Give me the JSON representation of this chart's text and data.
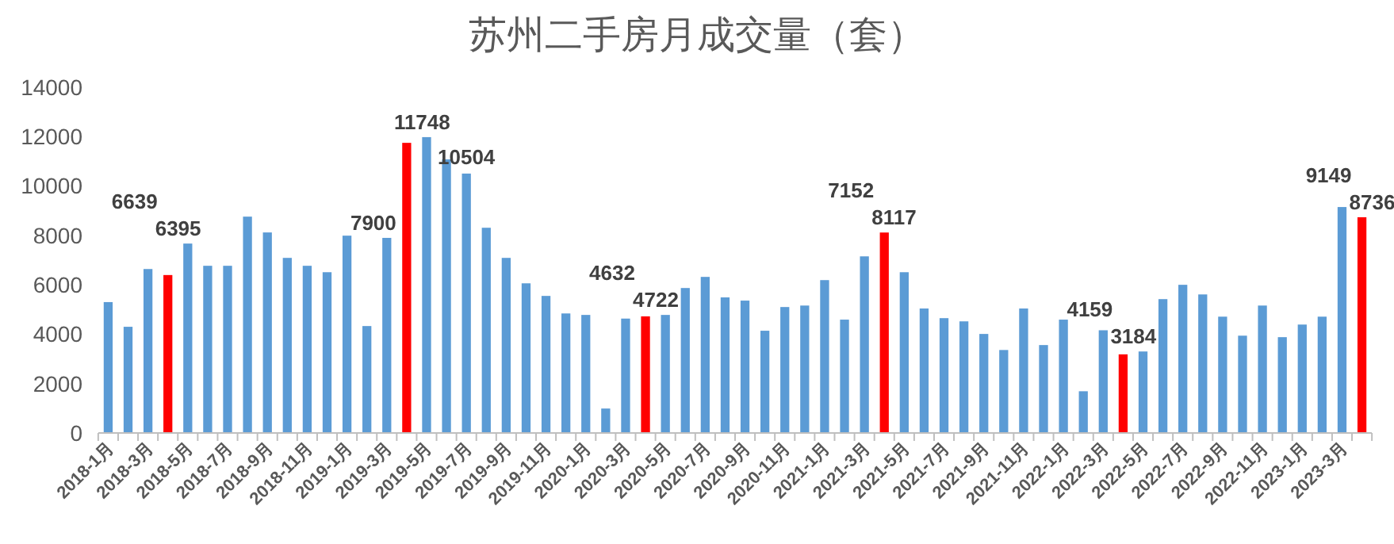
{
  "chart_data": {
    "type": "bar",
    "title": "苏州二手房月成交量（套）",
    "categories": [
      "2018-1月",
      null,
      "2018-3月",
      null,
      "2018-5月",
      null,
      "2018-7月",
      null,
      "2018-9月",
      null,
      "2018-11月",
      null,
      "2019-1月",
      null,
      "2019-3月",
      null,
      "2019-5月",
      null,
      "2019-7月",
      null,
      "2019-9月",
      null,
      "2019-11月",
      null,
      "2020-1月",
      null,
      "2020-3月",
      null,
      "2020-5月",
      null,
      "2020-7月",
      null,
      "2020-9月",
      null,
      "2020-11月",
      null,
      "2021-1月",
      null,
      "2021-3月",
      null,
      "2021-5月",
      null,
      "2021-7月",
      null,
      "2021-9月",
      null,
      "2021-11月",
      null,
      "2022-1月",
      null,
      "2022-3月",
      null,
      "2022-5月",
      null,
      "2022-7月",
      null,
      "2022-9月",
      null,
      "2022-11月",
      null,
      "2023-1月",
      null,
      "2023-3月",
      null
    ],
    "values": [
      5300,
      4300,
      6639,
      6395,
      7670,
      6770,
      6770,
      8760,
      8120,
      7090,
      6770,
      6510,
      7990,
      4330,
      7900,
      11748,
      11980,
      11080,
      10504,
      8310,
      7090,
      6060,
      5550,
      4840,
      4780,
      990,
      4632,
      4722,
      4780,
      5870,
      6320,
      5490,
      5360,
      4140,
      5100,
      5160,
      6190,
      4590,
      7152,
      8117,
      6510,
      5040,
      4650,
      4520,
      4010,
      3360,
      5040,
      3560,
      4590,
      1690,
      4159,
      3184,
      3300,
      5420,
      6000,
      5610,
      4710,
      3940,
      5160,
      3880,
      4390,
      4710,
      9149,
      8736
    ],
    "colors": [
      "#5b9bd5",
      "#5b9bd5",
      "#5b9bd5",
      "#ff0000",
      "#5b9bd5",
      "#5b9bd5",
      "#5b9bd5",
      "#5b9bd5",
      "#5b9bd5",
      "#5b9bd5",
      "#5b9bd5",
      "#5b9bd5",
      "#5b9bd5",
      "#5b9bd5",
      "#5b9bd5",
      "#ff0000",
      "#5b9bd5",
      "#5b9bd5",
      "#5b9bd5",
      "#5b9bd5",
      "#5b9bd5",
      "#5b9bd5",
      "#5b9bd5",
      "#5b9bd5",
      "#5b9bd5",
      "#5b9bd5",
      "#5b9bd5",
      "#ff0000",
      "#5b9bd5",
      "#5b9bd5",
      "#5b9bd5",
      "#5b9bd5",
      "#5b9bd5",
      "#5b9bd5",
      "#5b9bd5",
      "#5b9bd5",
      "#5b9bd5",
      "#5b9bd5",
      "#5b9bd5",
      "#ff0000",
      "#5b9bd5",
      "#5b9bd5",
      "#5b9bd5",
      "#5b9bd5",
      "#5b9bd5",
      "#5b9bd5",
      "#5b9bd5",
      "#5b9bd5",
      "#5b9bd5",
      "#5b9bd5",
      "#5b9bd5",
      "#ff0000",
      "#5b9bd5",
      "#5b9bd5",
      "#5b9bd5",
      "#5b9bd5",
      "#5b9bd5",
      "#5b9bd5",
      "#5b9bd5",
      "#5b9bd5",
      "#5b9bd5",
      "#5b9bd5",
      "#5b9bd5",
      "#ff0000"
    ],
    "value_labels": [
      null,
      null,
      "6639",
      "6395",
      null,
      null,
      null,
      null,
      null,
      null,
      null,
      null,
      null,
      null,
      "7900",
      "11748",
      null,
      null,
      "10504",
      null,
      null,
      null,
      null,
      null,
      null,
      null,
      "4632",
      "4722",
      null,
      null,
      null,
      null,
      null,
      null,
      null,
      null,
      null,
      null,
      "7152",
      "8117",
      null,
      null,
      null,
      null,
      null,
      null,
      null,
      null,
      null,
      null,
      "4159",
      "3184",
      null,
      null,
      null,
      null,
      null,
      null,
      null,
      null,
      null,
      null,
      "9149",
      "8736"
    ],
    "ylim": [
      0,
      14000
    ],
    "yticks": [
      0,
      2000,
      4000,
      6000,
      8000,
      10000,
      12000,
      14000
    ],
    "grid": false
  }
}
